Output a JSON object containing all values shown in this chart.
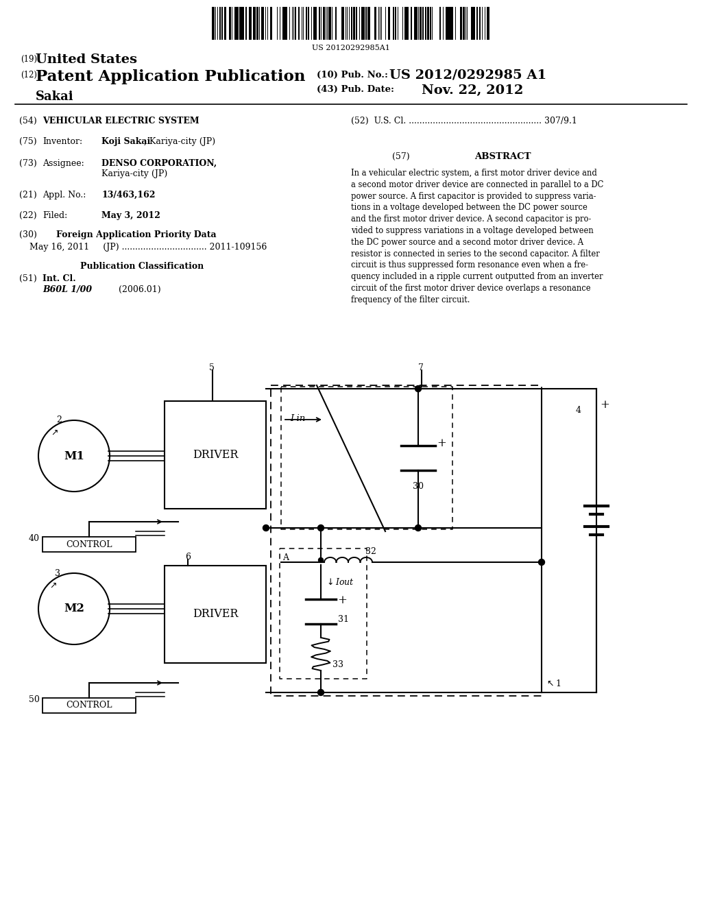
{
  "barcode_text": "US 20120292985A1",
  "title_19_small": "(19)",
  "title_19_big": "United States",
  "title_12_small": "(12)",
  "title_12_big": "Patent Application Publication",
  "pub_no_label": "(10) Pub. No.:",
  "pub_no": "US 2012/0292985 A1",
  "pub_date_label": "(43) Pub. Date:",
  "pub_date": "Nov. 22, 2012",
  "inventor_name": "Sakai",
  "field54_num": "(54)",
  "field54_val": "VEHICULAR ELECTRIC SYSTEM",
  "field52": "(52)  U.S. Cl. .................................................. 307/9.1",
  "field75_num": "(75)",
  "field75_label": "Inventor:",
  "field75_val_bold": "Koji Sakai",
  "field75_val_rest": ", Kariya-city (JP)",
  "field73_num": "(73)",
  "field73_label": "Assignee:",
  "field73_val": "DENSO CORPORATION,",
  "field73_val2": "Kariya-city (JP)",
  "field21_num": "(21)",
  "field21_label": "Appl. No.:",
  "field21_val": "13/463,162",
  "field22_num": "(22)",
  "field22_label": "Filed:",
  "field22_val": "May 3, 2012",
  "field30_num": "(30)",
  "field30_val": "Foreign Application Priority Data",
  "field30_data": "May 16, 2011     (JP) ................................ 2011-109156",
  "pub_class": "Publication Classification",
  "field51_num": "(51)",
  "field51_label": "Int. Cl.",
  "field51_val": "B60L 1/00",
  "field51_date": "(2006.01)",
  "abstract_num": "(57)",
  "abstract_label": "ABSTRACT",
  "abstract_text": "In a vehicular electric system, a first motor driver device and\na second motor driver device are connected in parallel to a DC\npower source. A first capacitor is provided to suppress varia-\ntions in a voltage developed between the DC power source\nand the first motor driver device. A second capacitor is pro-\nvided to suppress variations in a voltage developed between\nthe DC power source and a second motor driver device. A\nresistor is connected in series to the second capacitor. A filter\ncircuit is thus suppressed form resonance even when a fre-\nquency included in a ripple current outputted from an inverter\ncircuit of the first motor driver device overlaps a resonance\nfrequency of the filter circuit.",
  "bg_color": "#ffffff"
}
